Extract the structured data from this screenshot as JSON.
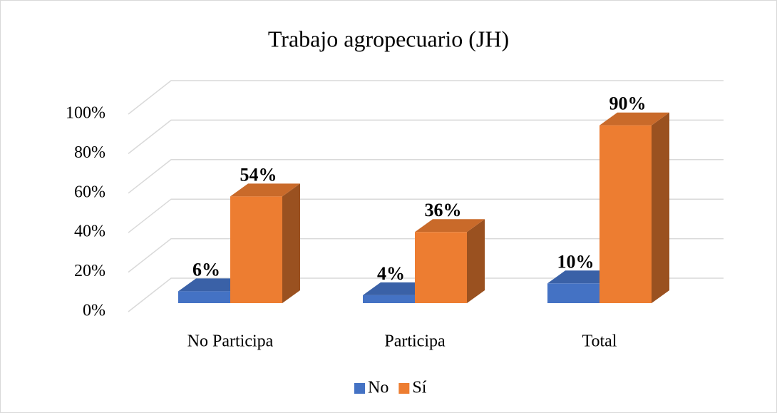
{
  "chart_data": {
    "type": "bar3d",
    "title": "Trabajo agropecuario (JH)",
    "categories": [
      "No Participa",
      "Participa",
      "Total"
    ],
    "series": [
      {
        "name": "No",
        "color": "#4472c4",
        "values": [
          6,
          4,
          10
        ],
        "value_labels": [
          "6%",
          "4%",
          "10%"
        ]
      },
      {
        "name": "Sí",
        "color": "#ed7d31",
        "values": [
          54,
          36,
          90
        ],
        "value_labels": [
          "54%",
          "36%",
          "90%"
        ]
      }
    ],
    "ylim": [
      0,
      100
    ],
    "yticks": [
      {
        "value": 0,
        "label": "0%"
      },
      {
        "value": 20,
        "label": "20%"
      },
      {
        "value": 40,
        "label": "40%"
      },
      {
        "value": 60,
        "label": "60%"
      },
      {
        "value": 80,
        "label": "80%"
      },
      {
        "value": 100,
        "label": "100%"
      }
    ],
    "grid": true,
    "legend": "bottom"
  }
}
